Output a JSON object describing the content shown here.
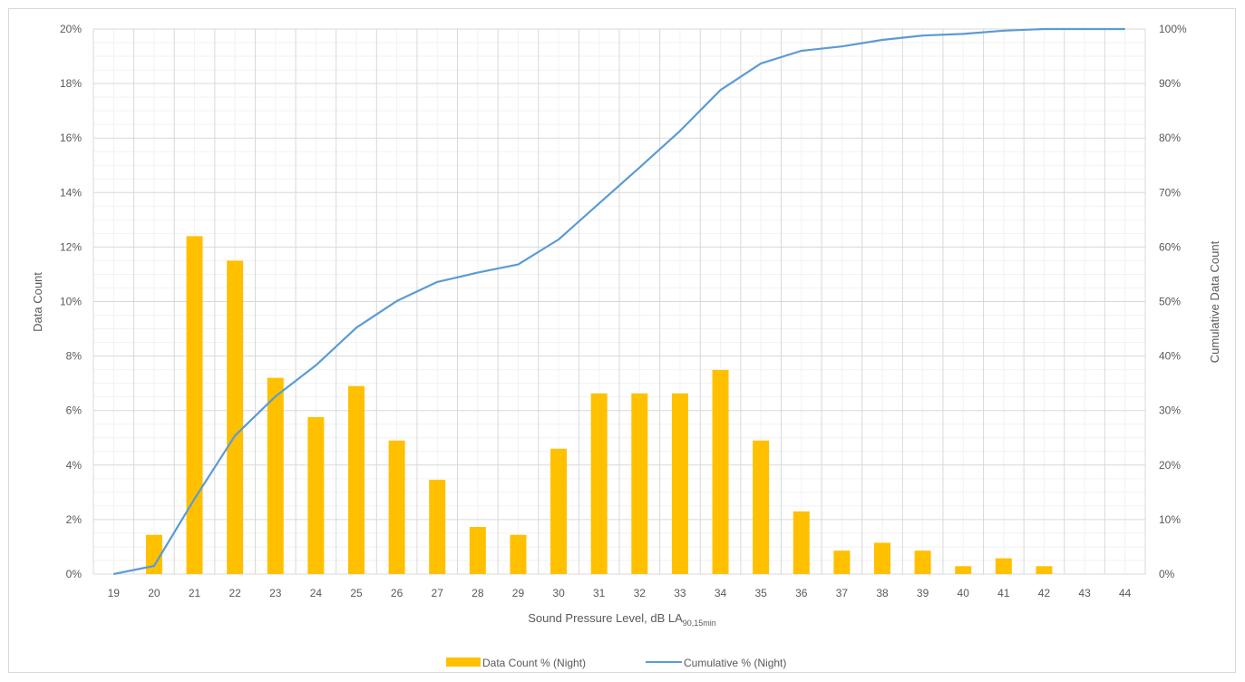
{
  "chart_data": {
    "type": "bar",
    "combo": "bar + line (secondary axis)",
    "categories": [
      "19",
      "20",
      "21",
      "22",
      "23",
      "24",
      "25",
      "26",
      "27",
      "28",
      "29",
      "30",
      "31",
      "32",
      "33",
      "34",
      "35",
      "36",
      "37",
      "38",
      "39",
      "40",
      "41",
      "42",
      "43",
      "44"
    ],
    "series": [
      {
        "name": "Data Count % (Night)",
        "type": "bar",
        "axis": "primary",
        "color": "#ffc000",
        "values": [
          0,
          1.44,
          12.4,
          11.5,
          7.2,
          5.76,
          6.9,
          4.9,
          3.46,
          1.73,
          1.44,
          4.6,
          6.63,
          6.63,
          6.63,
          7.49,
          4.9,
          2.3,
          0.86,
          1.15,
          0.86,
          0.29,
          0.58,
          0.29,
          0,
          0
        ]
      },
      {
        "name": "Cumulative % (Night)",
        "type": "line",
        "axis": "secondary",
        "color": "#5b9bd5",
        "values": [
          0,
          1.5,
          13.8,
          25.4,
          32.6,
          38.3,
          45.2,
          50.1,
          53.6,
          55.3,
          56.8,
          61.4,
          68.0,
          74.6,
          81.3,
          88.8,
          93.7,
          96.0,
          96.8,
          98.0,
          98.8,
          99.1,
          99.7,
          100,
          100,
          100
        ]
      }
    ],
    "xlabel": "Sound Pressure Level, dB LA",
    "xlabel_subscript": "90,15min",
    "ylabel": "Data Count",
    "y2label": "Cumulative Data Count",
    "ylim": [
      0,
      20
    ],
    "y2lim": [
      0,
      100
    ],
    "yticks": [
      "0%",
      "2%",
      "4%",
      "6%",
      "8%",
      "10%",
      "12%",
      "14%",
      "16%",
      "18%",
      "20%"
    ],
    "y2ticks": [
      "0%",
      "10%",
      "20%",
      "30%",
      "40%",
      "50%",
      "60%",
      "70%",
      "80%",
      "90%",
      "100%"
    ],
    "grid": "major and minor",
    "legend_position": "bottom"
  }
}
